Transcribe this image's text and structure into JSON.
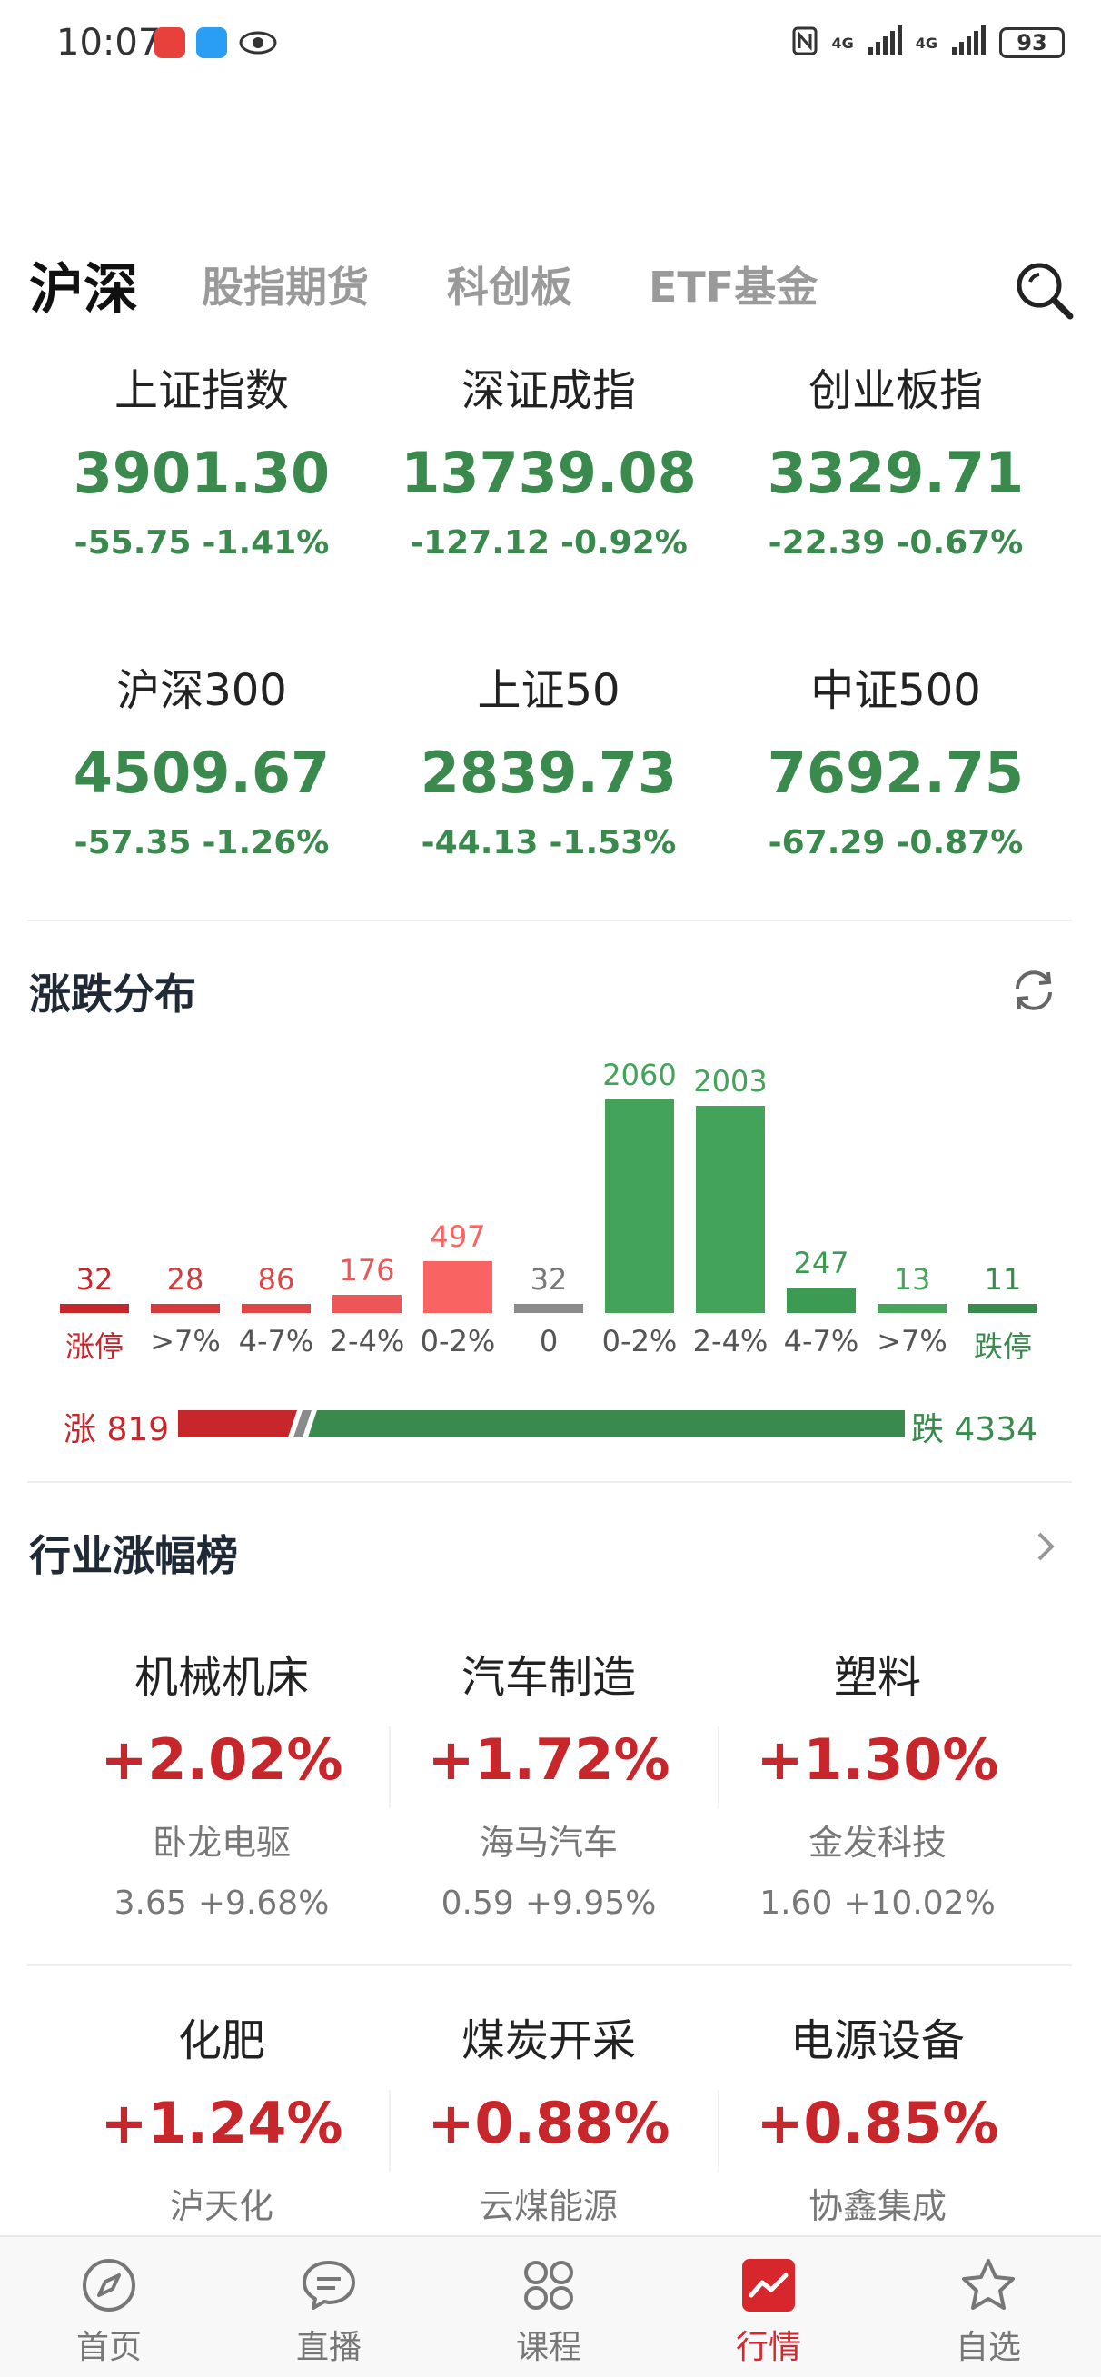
{
  "status_bar": {
    "time": "10:07",
    "signal_1": "4G",
    "signal_2": "4G",
    "battery": "93"
  },
  "tabs": [
    {
      "label": "沪深",
      "active": true
    },
    {
      "label": "股指期货",
      "active": false
    },
    {
      "label": "科创板",
      "active": false
    },
    {
      "label": "ETF基金",
      "active": false
    }
  ],
  "indices": [
    {
      "name": "上证指数",
      "value": "3901.30",
      "change": "-55.75",
      "pct": "-1.41%"
    },
    {
      "name": "深证成指",
      "value": "13739.08",
      "change": "-127.12",
      "pct": "-0.92%"
    },
    {
      "name": "创业板指",
      "value": "3329.71",
      "change": "-22.39",
      "pct": "-0.67%"
    },
    {
      "name": "沪深300",
      "value": "4509.67",
      "change": "-57.35",
      "pct": "-1.26%"
    },
    {
      "name": "上证50",
      "value": "2839.73",
      "change": "-44.13",
      "pct": "-1.53%"
    },
    {
      "name": "中证500",
      "value": "7692.75",
      "change": "-67.29",
      "pct": "-0.87%"
    }
  ],
  "distribution": {
    "title": "涨跌分布",
    "bars": [
      {
        "label": "涨停",
        "value": 32,
        "color": "#c7262b",
        "label_color": "#c7262b"
      },
      {
        "label": ">7%",
        "value": 28,
        "color": "#d63a3a",
        "label_color": "#555555"
      },
      {
        "label": "4-7%",
        "value": 86,
        "color": "#e04646",
        "label_color": "#555555"
      },
      {
        "label": "2-4%",
        "value": 176,
        "color": "#ec5656",
        "label_color": "#555555"
      },
      {
        "label": "0-2%",
        "value": 497,
        "color": "#f96462",
        "label_color": "#555555"
      },
      {
        "label": "0",
        "value": 32,
        "color": "#8a8a8a",
        "label_color": "#555555"
      },
      {
        "label": "0-2%",
        "value": 2060,
        "color": "#44a35a",
        "label_color": "#555555"
      },
      {
        "label": "2-4%",
        "value": 2003,
        "color": "#44a35a",
        "label_color": "#555555"
      },
      {
        "label": "4-7%",
        "value": 247,
        "color": "#3d9a52",
        "label_color": "#555555"
      },
      {
        "label": ">7%",
        "value": 13,
        "color": "#46a55b",
        "label_color": "#555555"
      },
      {
        "label": "跌停",
        "value": 11,
        "color": "#3a8a4e",
        "label_color": "#3a8a4e"
      }
    ],
    "up_label": "涨 819",
    "down_label": "跌 4334",
    "up_count": 819,
    "down_count": 4334
  },
  "industry": {
    "title": "行业涨幅榜",
    "items": [
      {
        "name": "机械机床",
        "pct": "+2.02%",
        "stock": "卧龙电驱",
        "price": "3.65",
        "stock_pct": "+9.68%"
      },
      {
        "name": "汽车制造",
        "pct": "+1.72%",
        "stock": "海马汽车",
        "price": "0.59",
        "stock_pct": "+9.95%"
      },
      {
        "name": "塑料",
        "pct": "+1.30%",
        "stock": "金发科技",
        "price": "1.60",
        "stock_pct": "+10.02%"
      },
      {
        "name": "化肥",
        "pct": "+1.24%",
        "stock": "泸天化"
      },
      {
        "name": "煤炭开采",
        "pct": "+0.88%",
        "stock": "云煤能源"
      },
      {
        "name": "电源设备",
        "pct": "+0.85%",
        "stock": "协鑫集成"
      }
    ]
  },
  "bottom_nav": [
    {
      "label": "首页",
      "icon": "compass-icon",
      "active": false
    },
    {
      "label": "直播",
      "icon": "chat-bubble-icon",
      "active": false
    },
    {
      "label": "课程",
      "icon": "four-leaf-icon",
      "active": false
    },
    {
      "label": "行情",
      "icon": "market-chart-icon",
      "active": true
    },
    {
      "label": "自选",
      "icon": "star-icon",
      "active": false
    }
  ],
  "colors": {
    "up": "#c7262b",
    "down": "#3a8a4e",
    "active_nav": "#d8262d"
  }
}
